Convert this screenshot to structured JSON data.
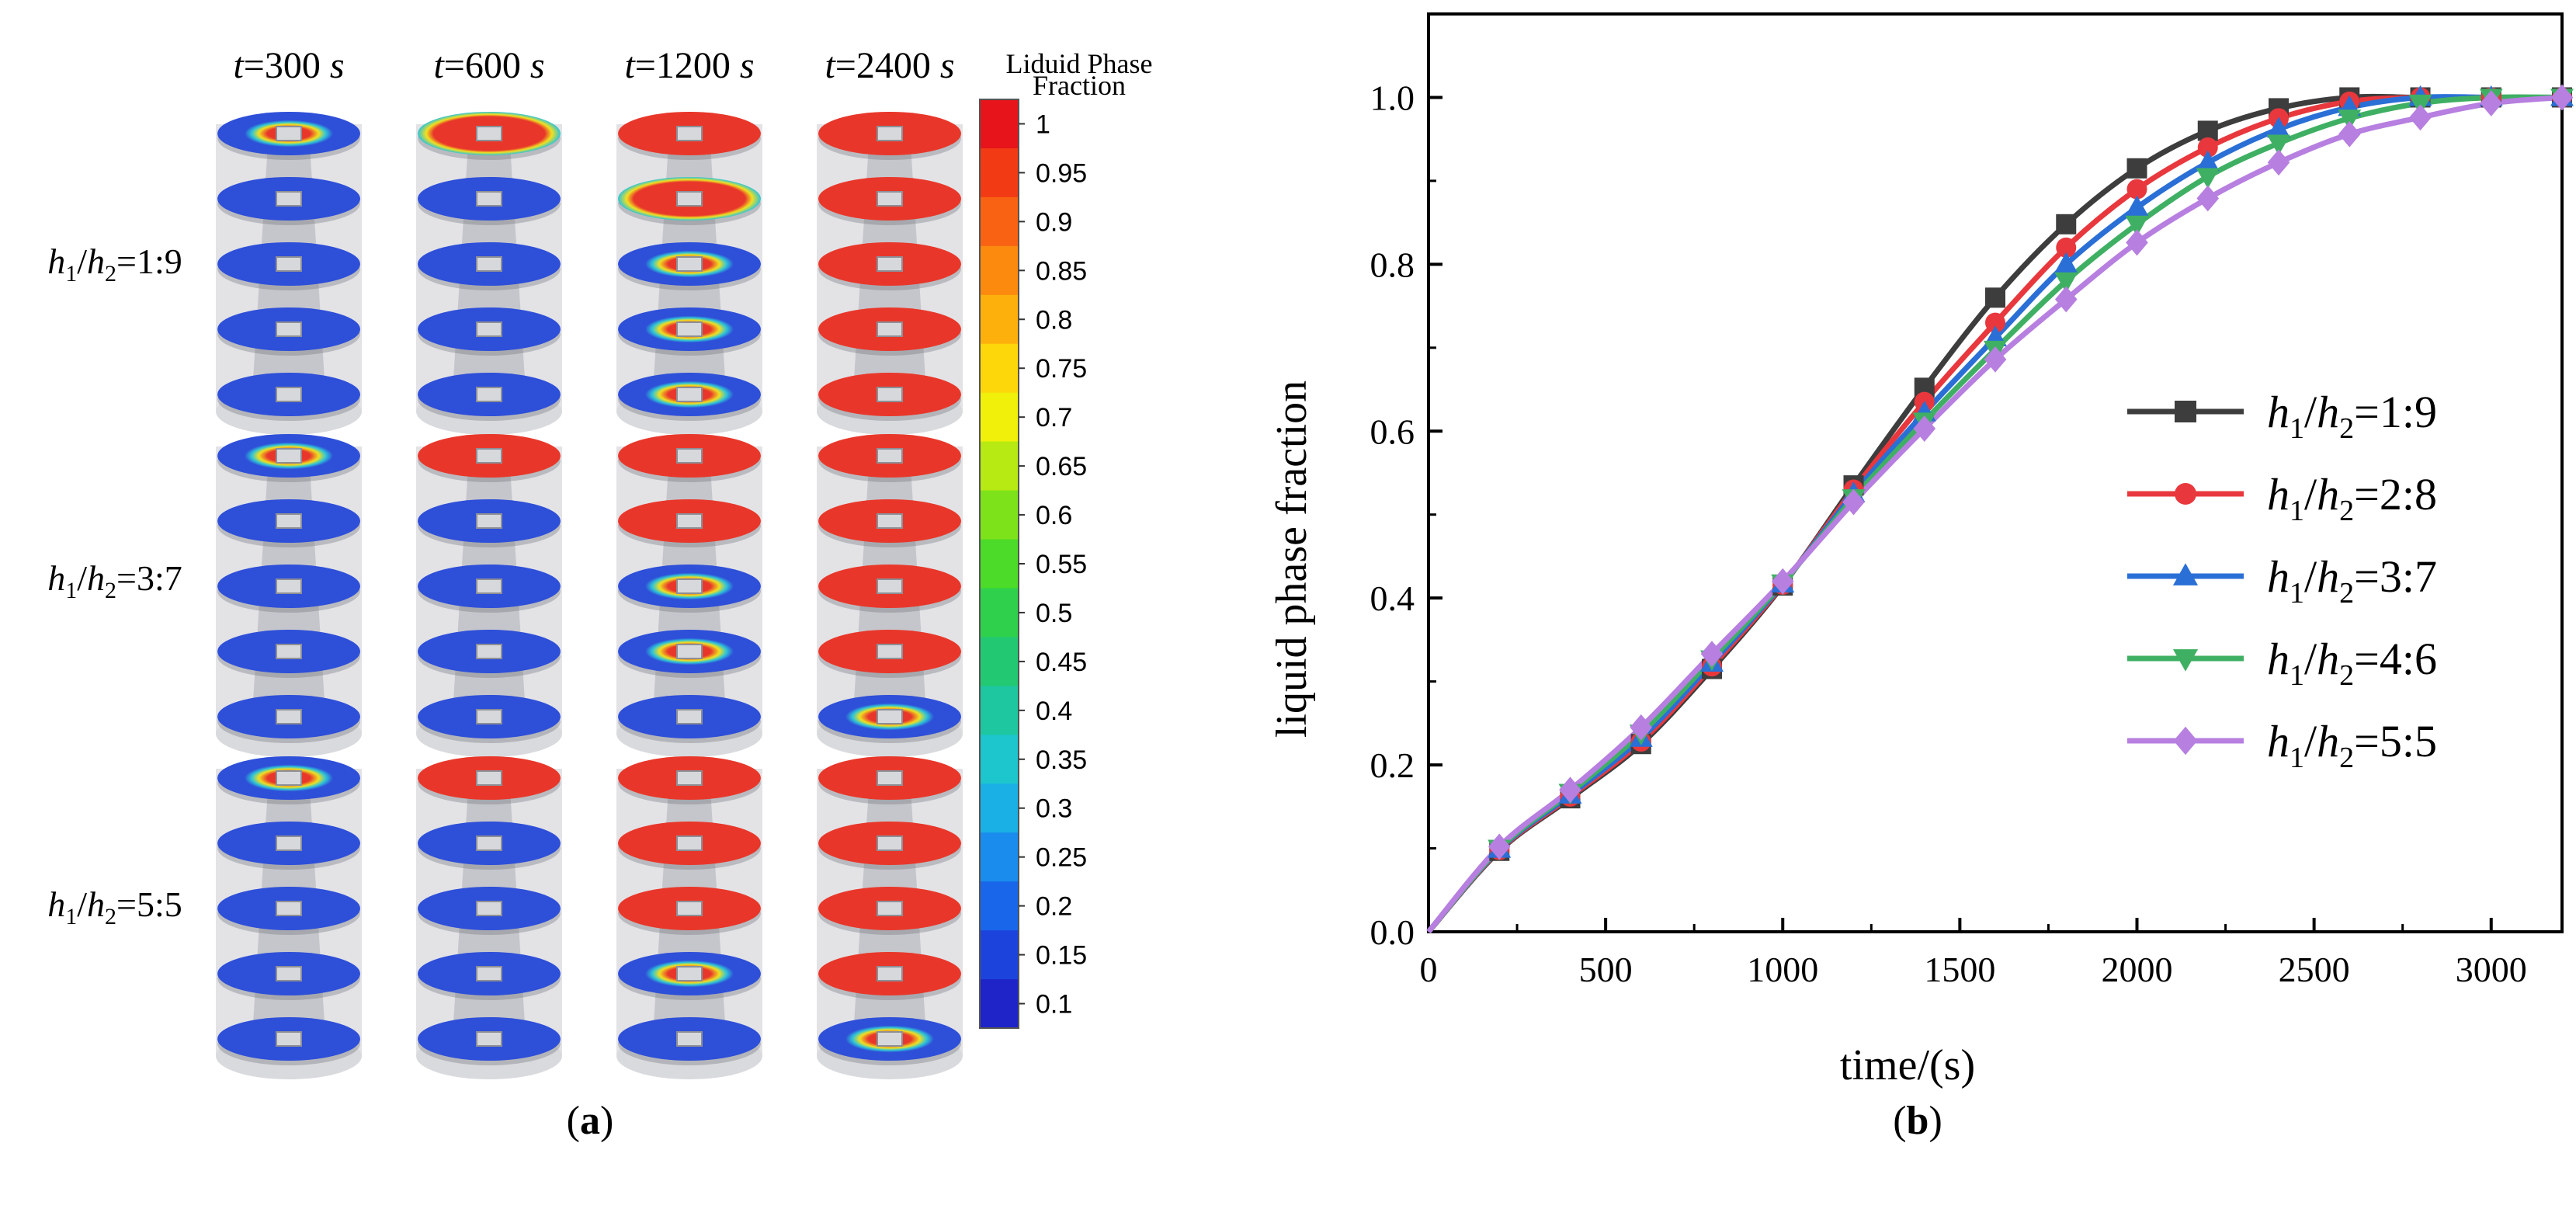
{
  "panel_a": {
    "label": "(a)",
    "label_letter": "a",
    "time_headers": [
      {
        "italic": "t",
        "value": "=300",
        "unit": "s"
      },
      {
        "italic": "t",
        "value": "=600",
        "unit": "s"
      },
      {
        "italic": "t",
        "value": "=1200",
        "unit": "s"
      },
      {
        "italic": "t",
        "value": "=2400",
        "unit": "s"
      }
    ],
    "row_labels": [
      {
        "h1": "h",
        "s1": "1",
        "h2": "h",
        "s2": "2",
        "ratio": "=1:9"
      },
      {
        "h1": "h",
        "s1": "1",
        "h2": "h",
        "s2": "2",
        "ratio": "=3:7"
      },
      {
        "h1": "h",
        "s1": "1",
        "h2": "h",
        "s2": "2",
        "ratio": "=5:5"
      }
    ],
    "colorbar": {
      "title_line1": "Liduid Phase",
      "title_line2": "Fraction",
      "ticks": [
        "1",
        "0.95",
        "0.9",
        "0.85",
        "0.8",
        "0.75",
        "0.7",
        "0.65",
        "0.6",
        "0.55",
        "0.5",
        "0.45",
        "0.4",
        "0.35",
        "0.3",
        "0.25",
        "0.2",
        "0.15",
        "0.1"
      ],
      "colors": [
        "#e8141b",
        "#f23a14",
        "#f86212",
        "#fb8a0f",
        "#fdb00c",
        "#fdd70a",
        "#f0f00a",
        "#b6ea12",
        "#7ee21a",
        "#4bdb28",
        "#2fd14c",
        "#22c972",
        "#1ec7a0",
        "#1cc6cc",
        "#1ab0e6",
        "#1a8cee",
        "#1a66ea",
        "#1c44dc",
        "#1f24c8"
      ]
    },
    "disk_fills": [
      [
        [
          "partial",
          "blue",
          "blue",
          "blue",
          "blue"
        ],
        [
          "red-ring",
          "blue",
          "blue",
          "blue",
          "blue"
        ],
        [
          "red",
          "red-ring",
          "partial",
          "partial",
          "partial"
        ],
        [
          "red",
          "red",
          "red",
          "red",
          "red"
        ]
      ],
      [
        [
          "partial",
          "blue",
          "blue",
          "blue",
          "blue"
        ],
        [
          "red",
          "blue",
          "blue",
          "blue",
          "blue"
        ],
        [
          "red",
          "red",
          "partial",
          "partial",
          "blue"
        ],
        [
          "red",
          "red",
          "red",
          "red",
          "partial"
        ]
      ],
      [
        [
          "partial",
          "blue",
          "blue",
          "blue",
          "blue"
        ],
        [
          "red",
          "blue",
          "blue",
          "blue",
          "blue"
        ],
        [
          "red",
          "red",
          "red",
          "partial",
          "blue"
        ],
        [
          "red",
          "red",
          "red",
          "red",
          "partial"
        ]
      ]
    ],
    "colors": {
      "red": "#e8372a",
      "blue": "#2e4fd8",
      "ring": "#f0e020",
      "cyan": "#2ec4d8",
      "cylinder": "#d9dadd"
    }
  },
  "panel_b": {
    "label": "(b)",
    "label_letter": "b"
  },
  "chart_data": {
    "type": "line",
    "title": "",
    "xlabel": "time/(s)",
    "ylabel": "liquid phase fraction",
    "xlim": [
      0,
      3200
    ],
    "ylim": [
      0,
      1.1
    ],
    "xticks": [
      0,
      500,
      1000,
      1500,
      2000,
      2500,
      3000
    ],
    "yticks": [
      0.0,
      0.2,
      0.4,
      0.6,
      0.8,
      1.0
    ],
    "xtick_labels": [
      "0",
      "500",
      "1000",
      "1500",
      "2000",
      "2500",
      "3000"
    ],
    "ytick_labels": [
      "0.0",
      "0.2",
      "0.4",
      "0.6",
      "0.8",
      "1.0"
    ],
    "legend_position": "center-right",
    "marker_x": [
      0,
      200,
      400,
      600,
      800,
      1000,
      1200,
      1400,
      1600,
      1800,
      2000,
      2200,
      2400,
      2600,
      2800,
      3000,
      3200
    ],
    "series": [
      {
        "name": "h1/h2=1:9",
        "legend": {
          "a": "h",
          "as": "1",
          "b": "h",
          "bs": "2",
          "ratio": "=1:9"
        },
        "color": "#3d3d3d",
        "marker": "square",
        "values": [
          0.0,
          0.097,
          0.16,
          0.225,
          0.315,
          0.415,
          0.535,
          0.652,
          0.76,
          0.848,
          0.915,
          0.96,
          0.987,
          1.0,
          1.0,
          1.0,
          1.0
        ]
      },
      {
        "name": "h1/h2=2:8",
        "legend": {
          "a": "h",
          "as": "1",
          "b": "h",
          "bs": "2",
          "ratio": "=2:8"
        },
        "color": "#e8383d",
        "marker": "circle",
        "values": [
          0.0,
          0.098,
          0.162,
          0.228,
          0.318,
          0.416,
          0.53,
          0.635,
          0.73,
          0.82,
          0.89,
          0.94,
          0.975,
          0.995,
          1.0,
          1.0,
          1.0
        ]
      },
      {
        "name": "h1/h2=3:7",
        "legend": {
          "a": "h",
          "as": "1",
          "b": "h",
          "bs": "2",
          "ratio": "=3:7"
        },
        "color": "#2a6fd6",
        "marker": "triangle-up",
        "values": [
          0.0,
          0.099,
          0.164,
          0.232,
          0.322,
          0.417,
          0.525,
          0.622,
          0.712,
          0.8,
          0.868,
          0.922,
          0.962,
          0.988,
          1.0,
          1.0,
          1.0
        ]
      },
      {
        "name": "h1/h2=4:6",
        "legend": {
          "a": "h",
          "as": "1",
          "b": "h",
          "bs": "2",
          "ratio": "=4:6"
        },
        "color": "#3fb063",
        "marker": "triangle-down",
        "values": [
          0.0,
          0.1,
          0.167,
          0.238,
          0.327,
          0.418,
          0.52,
          0.612,
          0.698,
          0.78,
          0.848,
          0.905,
          0.945,
          0.975,
          0.993,
          1.0,
          1.0
        ]
      },
      {
        "name": "h1/h2=5:5",
        "legend": {
          "a": "h",
          "as": "1",
          "b": "h",
          "bs": "2",
          "ratio": "=5:5"
        },
        "color": "#b77fe0",
        "marker": "diamond",
        "values": [
          0.0,
          0.102,
          0.17,
          0.245,
          0.333,
          0.42,
          0.515,
          0.603,
          0.686,
          0.758,
          0.826,
          0.879,
          0.922,
          0.956,
          0.976,
          0.993,
          1.0
        ]
      }
    ]
  }
}
